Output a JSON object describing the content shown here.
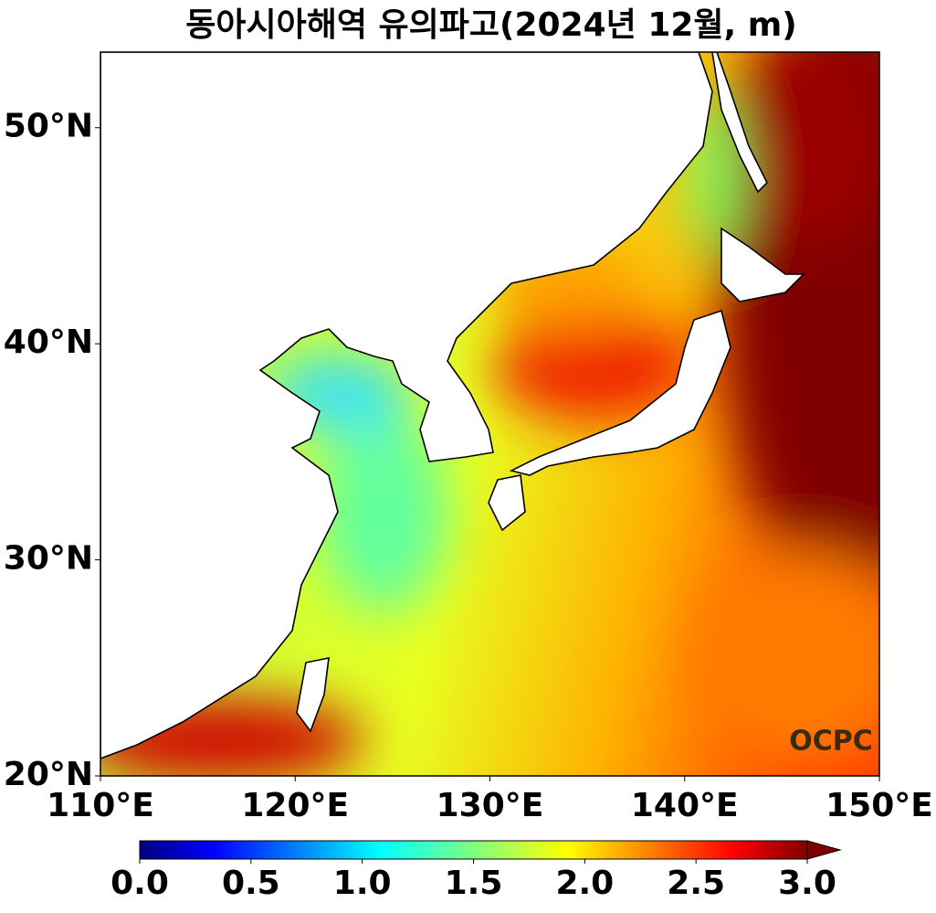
{
  "title": "동아시아해역 유의파고(2024년 12월, m)",
  "map": {
    "lonlim": [
      110,
      150
    ],
    "latlim": [
      20,
      53.5
    ],
    "xticks": [
      {
        "value": 110,
        "label": "110°E"
      },
      {
        "value": 120,
        "label": "120°E"
      },
      {
        "value": 130,
        "label": "130°E"
      },
      {
        "value": 140,
        "label": "140°E"
      },
      {
        "value": 150,
        "label": "150°E"
      }
    ],
    "yticks": [
      {
        "value": 20,
        "label": "20°N"
      },
      {
        "value": 30,
        "label": "30°N"
      },
      {
        "value": 40,
        "label": "40°N"
      },
      {
        "value": 50,
        "label": "50°N"
      }
    ]
  },
  "colorbar": {
    "lim": [
      0,
      3
    ],
    "colormap": "jet",
    "extend": "max",
    "ticks": [
      {
        "value": 0,
        "label": "0.0"
      },
      {
        "value": 0.5,
        "label": "0.5"
      },
      {
        "value": 1,
        "label": "1.0"
      },
      {
        "value": 1.5,
        "label": "1.5"
      },
      {
        "value": 2,
        "label": "2.0"
      },
      {
        "value": 2.5,
        "label": "2.5"
      },
      {
        "value": 3,
        "label": "3.0"
      }
    ]
  },
  "logo": "OCPC"
}
